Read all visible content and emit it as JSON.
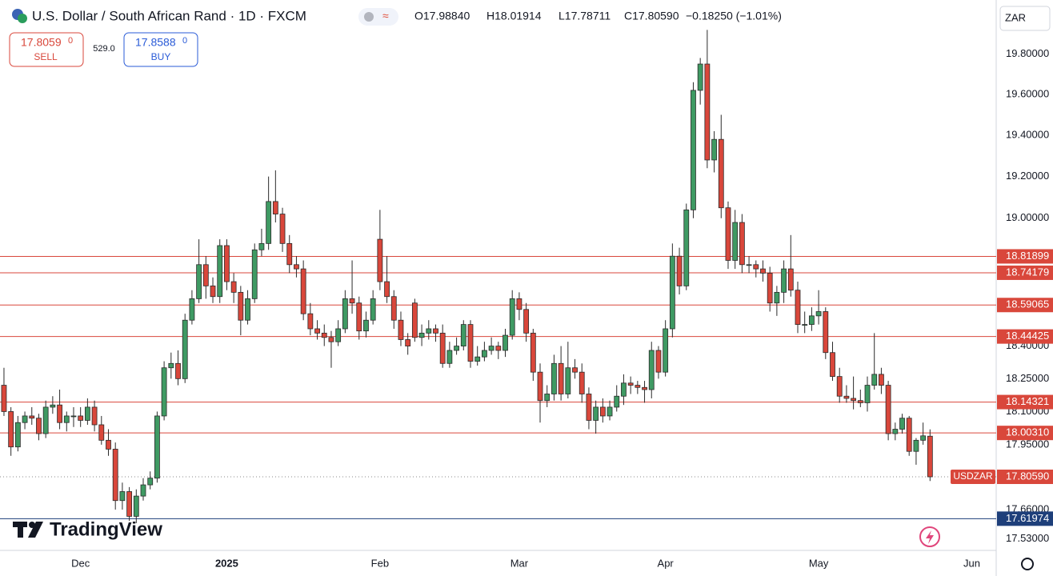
{
  "header": {
    "title": "U.S. Dollar / South African Rand · 1D · FXCM",
    "open": "O17.98840",
    "high": "H18.01914",
    "low": "L17.78711",
    "close": "C17.80590",
    "change": "−0.18250 (−1.01%)"
  },
  "trade": {
    "sell_price": "17.8059",
    "sell_sup": "0",
    "sell": "SELL",
    "spread": "529.0",
    "buy_price": "17.8588",
    "buy_sup": "0",
    "buy": "BUY"
  },
  "currency": "ZAR",
  "brand": "TradingView",
  "chart_data": {
    "type": "candlestick",
    "up_color": "#3f9a63",
    "down_color": "#d9473b",
    "log": true,
    "ylim": [
      17.48,
      20.07
    ],
    "yticks": [
      {
        "value": 19.8,
        "label": "19.80000"
      },
      {
        "value": 19.6,
        "label": "19.60000"
      },
      {
        "value": 19.4,
        "label": "19.40000"
      },
      {
        "value": 19.2,
        "label": "19.20000"
      },
      {
        "value": 19,
        "label": "19.00000"
      },
      {
        "value": 18.4,
        "label": "18.40000"
      },
      {
        "value": 18.25,
        "label": "18.25000"
      },
      {
        "value": 18.1,
        "label": "18.10000"
      },
      {
        "value": 17.95,
        "label": "17.95000"
      },
      {
        "value": 17.66,
        "label": "17.66000"
      },
      {
        "value": 17.53,
        "label": "17.53000"
      }
    ],
    "xlim": [
      -0.57,
      142.5
    ],
    "xticks": [
      {
        "value": 11,
        "label": "Dec"
      },
      {
        "value": 32,
        "label": "2025"
      },
      {
        "value": 54,
        "label": "Feb"
      },
      {
        "value": 74,
        "label": "Mar"
      },
      {
        "value": 95,
        "label": "Apr"
      },
      {
        "value": 117,
        "label": "May"
      },
      {
        "value": 139,
        "label": "Jun"
      }
    ],
    "levels": [
      {
        "value": 18.81899,
        "label": "18.81899",
        "color": "#d9473b"
      },
      {
        "value": 18.74179,
        "label": "18.74179",
        "color": "#d9473b"
      },
      {
        "value": 18.59065,
        "label": "18.59065",
        "color": "#d9473b"
      },
      {
        "value": 18.44425,
        "label": "18.44425",
        "color": "#d9473b"
      },
      {
        "value": 18.14321,
        "label": "18.14321",
        "color": "#d9473b"
      },
      {
        "value": 18.0031,
        "label": "18.00310",
        "color": "#d9473b"
      },
      {
        "value": 17.61974,
        "label": "17.61974",
        "color": "#1e3f7a"
      }
    ],
    "last": {
      "name": "USDZAR",
      "value": 17.8059,
      "label": "17.80590",
      "color": "#d9473b"
    },
    "candles": [
      [
        18.22,
        18.3,
        18.08,
        18.1
      ],
      [
        18.1,
        18.12,
        17.9,
        17.94
      ],
      [
        17.94,
        18.08,
        17.92,
        18.05
      ],
      [
        18.05,
        18.1,
        18.02,
        18.08
      ],
      [
        18.08,
        18.12,
        18.04,
        18.07
      ],
      [
        18.07,
        18.09,
        17.97,
        18.0
      ],
      [
        18.0,
        18.15,
        17.98,
        18.12
      ],
      [
        18.12,
        18.17,
        18.09,
        18.13
      ],
      [
        18.13,
        18.2,
        18.02,
        18.05
      ],
      [
        18.05,
        18.1,
        18.01,
        18.08
      ],
      [
        18.08,
        18.12,
        18.03,
        18.08
      ],
      [
        18.08,
        18.12,
        18.03,
        18.06
      ],
      [
        18.06,
        18.16,
        18.04,
        18.12
      ],
      [
        18.12,
        18.15,
        18.01,
        18.04
      ],
      [
        18.04,
        18.08,
        17.95,
        17.97
      ],
      [
        17.97,
        18.02,
        17.9,
        17.93
      ],
      [
        17.93,
        17.96,
        17.66,
        17.7
      ],
      [
        17.7,
        17.78,
        17.66,
        17.74
      ],
      [
        17.74,
        17.76,
        17.61,
        17.63
      ],
      [
        17.63,
        17.75,
        17.6,
        17.72
      ],
      [
        17.72,
        17.8,
        17.7,
        17.77
      ],
      [
        17.77,
        17.83,
        17.75,
        17.8
      ],
      [
        17.8,
        18.1,
        17.78,
        18.08
      ],
      [
        18.08,
        18.33,
        18.06,
        18.3
      ],
      [
        18.3,
        18.37,
        18.25,
        18.32
      ],
      [
        18.32,
        18.38,
        18.22,
        18.25
      ],
      [
        18.25,
        18.55,
        18.23,
        18.52
      ],
      [
        18.52,
        18.66,
        18.5,
        18.62
      ],
      [
        18.62,
        18.9,
        18.6,
        18.78
      ],
      [
        18.78,
        18.82,
        18.62,
        18.68
      ],
      [
        18.68,
        18.72,
        18.6,
        18.63
      ],
      [
        18.63,
        18.9,
        18.6,
        18.87
      ],
      [
        18.87,
        18.9,
        18.66,
        18.7
      ],
      [
        18.7,
        18.74,
        18.6,
        18.65
      ],
      [
        18.65,
        18.68,
        18.45,
        18.52
      ],
      [
        18.52,
        18.66,
        18.5,
        18.62
      ],
      [
        18.62,
        18.88,
        18.6,
        18.85
      ],
      [
        18.85,
        18.95,
        18.82,
        18.88
      ],
      [
        18.88,
        19.2,
        18.85,
        19.08
      ],
      [
        19.08,
        19.23,
        18.98,
        19.02
      ],
      [
        19.02,
        19.05,
        18.84,
        18.88
      ],
      [
        18.88,
        18.92,
        18.74,
        18.78
      ],
      [
        18.78,
        18.82,
        18.72,
        18.76
      ],
      [
        18.76,
        18.8,
        18.52,
        18.55
      ],
      [
        18.55,
        18.6,
        18.45,
        18.48
      ],
      [
        18.48,
        18.52,
        18.43,
        18.46
      ],
      [
        18.46,
        18.5,
        18.4,
        18.44
      ],
      [
        18.44,
        18.47,
        18.3,
        18.42
      ],
      [
        18.42,
        18.52,
        18.4,
        18.48
      ],
      [
        18.48,
        18.66,
        18.46,
        18.62
      ],
      [
        18.62,
        18.8,
        18.55,
        18.6
      ],
      [
        18.6,
        18.63,
        18.43,
        18.47
      ],
      [
        18.47,
        18.56,
        18.44,
        18.52
      ],
      [
        18.52,
        18.66,
        18.5,
        18.62
      ],
      [
        18.9,
        19.04,
        18.66,
        18.7
      ],
      [
        18.7,
        18.82,
        18.6,
        18.63
      ],
      [
        18.63,
        18.66,
        18.48,
        18.52
      ],
      [
        18.52,
        18.56,
        18.4,
        18.43
      ],
      [
        18.43,
        18.46,
        18.36,
        18.4
      ],
      [
        18.6,
        18.62,
        18.42,
        18.44
      ],
      [
        18.44,
        18.5,
        18.4,
        18.46
      ],
      [
        18.46,
        18.52,
        18.43,
        18.48
      ],
      [
        18.48,
        18.5,
        18.42,
        18.46
      ],
      [
        18.46,
        18.5,
        18.3,
        18.32
      ],
      [
        18.32,
        18.42,
        18.3,
        18.38
      ],
      [
        18.38,
        18.44,
        18.36,
        18.4
      ],
      [
        18.4,
        18.52,
        18.38,
        18.5
      ],
      [
        18.5,
        18.52,
        18.3,
        18.33
      ],
      [
        18.33,
        18.4,
        18.31,
        18.35
      ],
      [
        18.35,
        18.42,
        18.33,
        18.38
      ],
      [
        18.38,
        18.44,
        18.36,
        18.4
      ],
      [
        18.4,
        18.42,
        18.34,
        18.38
      ],
      [
        18.38,
        18.48,
        18.35,
        18.45
      ],
      [
        18.45,
        18.66,
        18.43,
        18.62
      ],
      [
        18.62,
        18.65,
        18.52,
        18.57
      ],
      [
        18.57,
        18.6,
        18.42,
        18.46
      ],
      [
        18.46,
        18.48,
        18.24,
        18.28
      ],
      [
        18.28,
        18.32,
        18.05,
        18.15
      ],
      [
        18.15,
        18.22,
        18.12,
        18.18
      ],
      [
        18.18,
        18.36,
        18.15,
        18.32
      ],
      [
        18.32,
        18.4,
        18.15,
        18.18
      ],
      [
        18.18,
        18.42,
        18.16,
        18.3
      ],
      [
        18.3,
        18.34,
        18.25,
        18.28
      ],
      [
        18.28,
        18.32,
        18.14,
        18.18
      ],
      [
        18.18,
        18.21,
        18.02,
        18.06
      ],
      [
        18.06,
        18.15,
        18.0,
        18.12
      ],
      [
        18.12,
        18.16,
        18.05,
        18.08
      ],
      [
        18.08,
        18.15,
        18.06,
        18.12
      ],
      [
        18.12,
        18.22,
        18.1,
        18.17
      ],
      [
        18.17,
        18.27,
        18.13,
        18.23
      ],
      [
        18.23,
        18.26,
        18.18,
        18.22
      ],
      [
        18.22,
        18.24,
        18.18,
        18.21
      ],
      [
        18.21,
        18.24,
        18.14,
        18.2
      ],
      [
        18.2,
        18.42,
        18.16,
        18.38
      ],
      [
        18.38,
        18.4,
        18.25,
        18.28
      ],
      [
        18.28,
        18.52,
        18.26,
        18.48
      ],
      [
        18.48,
        18.88,
        18.44,
        18.82
      ],
      [
        18.82,
        18.86,
        18.64,
        18.68
      ],
      [
        18.68,
        19.07,
        18.66,
        19.04
      ],
      [
        19.04,
        19.66,
        19.0,
        19.62
      ],
      [
        19.62,
        19.78,
        19.55,
        19.75
      ],
      [
        19.75,
        19.92,
        19.24,
        19.28
      ],
      [
        19.28,
        19.42,
        19.22,
        19.38
      ],
      [
        19.38,
        19.5,
        19.0,
        19.05
      ],
      [
        19.05,
        19.08,
        18.76,
        18.8
      ],
      [
        18.8,
        19.04,
        18.76,
        18.98
      ],
      [
        18.98,
        19.02,
        18.74,
        18.78
      ],
      [
        18.78,
        18.82,
        18.74,
        18.78
      ],
      [
        18.78,
        18.8,
        18.72,
        18.76
      ],
      [
        18.76,
        18.8,
        18.7,
        18.74
      ],
      [
        18.74,
        18.77,
        18.56,
        18.6
      ],
      [
        18.6,
        18.68,
        18.54,
        18.65
      ],
      [
        18.65,
        18.8,
        18.6,
        18.76
      ],
      [
        18.76,
        18.92,
        18.63,
        18.66
      ],
      [
        18.66,
        18.7,
        18.46,
        18.5
      ],
      [
        18.5,
        18.56,
        18.46,
        18.5
      ],
      [
        18.5,
        18.58,
        18.47,
        18.54
      ],
      [
        18.54,
        18.66,
        18.5,
        18.56
      ],
      [
        18.56,
        18.58,
        18.34,
        18.37
      ],
      [
        18.37,
        18.42,
        18.24,
        18.26
      ],
      [
        18.26,
        18.3,
        18.14,
        18.17
      ],
      [
        18.17,
        18.22,
        18.14,
        18.16
      ],
      [
        18.16,
        18.26,
        18.11,
        18.15
      ],
      [
        18.15,
        18.2,
        18.12,
        18.14
      ],
      [
        18.14,
        18.26,
        18.1,
        18.22
      ],
      [
        18.22,
        18.46,
        18.2,
        18.27
      ],
      [
        18.27,
        18.3,
        18.18,
        18.22
      ],
      [
        18.22,
        18.24,
        17.97,
        18.0
      ],
      [
        18.0,
        18.05,
        17.97,
        18.02
      ],
      [
        18.02,
        18.09,
        18.0,
        18.07
      ],
      [
        18.07,
        18.08,
        17.9,
        17.92
      ],
      [
        17.92,
        17.98,
        17.86,
        17.97
      ],
      [
        17.97,
        18.05,
        17.95,
        17.99
      ],
      [
        17.9884,
        18.01914,
        17.78711,
        17.8059
      ]
    ]
  }
}
